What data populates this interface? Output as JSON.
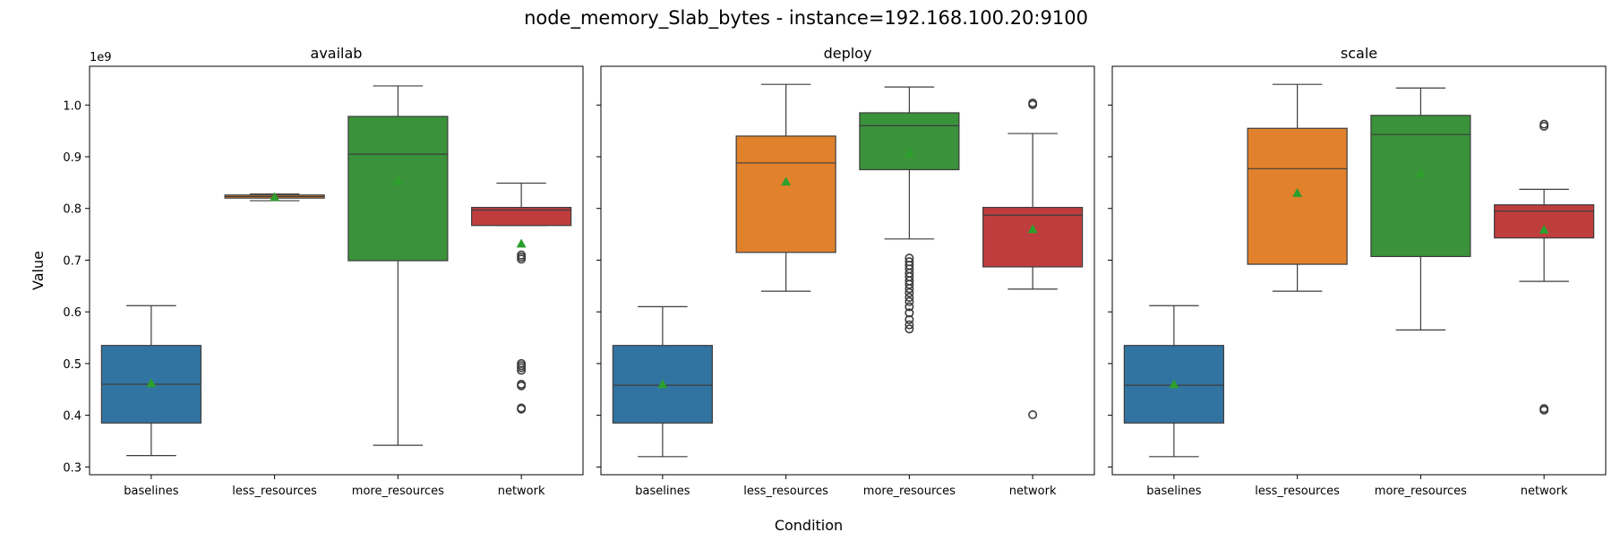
{
  "figure": {
    "title": "node_memory_Slab_bytes - instance=192.168.100.20:9100",
    "xlabel": "Condition",
    "ylabel": "Value",
    "y_offset_text": "1e9"
  },
  "colors": {
    "baselines": "#3274a1",
    "less_resources": "#e1812c",
    "more_resources": "#3a923a",
    "network": "#c03d3e",
    "mean_marker": "#2ca02c",
    "line": "#3d3d3d"
  },
  "chart_data": [
    {
      "type": "box",
      "title": "availab",
      "categories": [
        "baselines",
        "less_resources",
        "more_resources",
        "network"
      ],
      "ylim": [
        0.285,
        1.075
      ],
      "yticks": [
        0.3,
        0.4,
        0.5,
        0.6,
        0.7,
        0.8,
        0.9,
        1.0
      ],
      "boxes": [
        {
          "category": "baselines",
          "whislo": 0.322,
          "q1": 0.385,
          "med": 0.46,
          "q3": 0.535,
          "whishi": 0.612,
          "mean": 0.462,
          "fliers": []
        },
        {
          "category": "less_resources",
          "whislo": 0.815,
          "q1": 0.82,
          "med": 0.823,
          "q3": 0.826,
          "whishi": 0.828,
          "mean": 0.822,
          "fliers": []
        },
        {
          "category": "more_resources",
          "whislo": 0.342,
          "q1": 0.699,
          "med": 0.905,
          "q3": 0.978,
          "whishi": 1.037,
          "mean": 0.853,
          "fliers": []
        },
        {
          "category": "network",
          "whislo": 0.767,
          "q1": 0.767,
          "med": 0.797,
          "q3": 0.802,
          "whishi": 0.849,
          "mean": 0.732,
          "fliers": [
            0.412,
            0.414,
            0.457,
            0.46,
            0.487,
            0.492,
            0.496,
            0.5,
            0.702,
            0.706,
            0.71
          ]
        }
      ]
    },
    {
      "type": "box",
      "title": "deploy",
      "categories": [
        "baselines",
        "less_resources",
        "more_resources",
        "network"
      ],
      "ylim": [
        0.285,
        1.075
      ],
      "yticks": [
        0.3,
        0.4,
        0.5,
        0.6,
        0.7,
        0.8,
        0.9,
        1.0
      ],
      "boxes": [
        {
          "category": "baselines",
          "whislo": 0.32,
          "q1": 0.385,
          "med": 0.458,
          "q3": 0.535,
          "whishi": 0.61,
          "mean": 0.46,
          "fliers": []
        },
        {
          "category": "less_resources",
          "whislo": 0.64,
          "q1": 0.715,
          "med": 0.888,
          "q3": 0.94,
          "whishi": 1.04,
          "mean": 0.852,
          "fliers": []
        },
        {
          "category": "more_resources",
          "whislo": 0.741,
          "q1": 0.875,
          "med": 0.96,
          "q3": 0.985,
          "whishi": 1.035,
          "mean": 0.907,
          "fliers": [
            0.567,
            0.575,
            0.585,
            0.598,
            0.61,
            0.62,
            0.628,
            0.637,
            0.645,
            0.653,
            0.66,
            0.668,
            0.675,
            0.683,
            0.69,
            0.697,
            0.704
          ]
        },
        {
          "category": "network",
          "whislo": 0.644,
          "q1": 0.687,
          "med": 0.787,
          "q3": 0.802,
          "whishi": 0.945,
          "mean": 0.76,
          "fliers": [
            0.401,
            1.001,
            1.004
          ]
        }
      ]
    },
    {
      "type": "box",
      "title": "scale",
      "categories": [
        "baselines",
        "less_resources",
        "more_resources",
        "network"
      ],
      "ylim": [
        0.285,
        1.075
      ],
      "yticks": [
        0.3,
        0.4,
        0.5,
        0.6,
        0.7,
        0.8,
        0.9,
        1.0
      ],
      "boxes": [
        {
          "category": "baselines",
          "whislo": 0.32,
          "q1": 0.385,
          "med": 0.458,
          "q3": 0.535,
          "whishi": 0.612,
          "mean": 0.46,
          "fliers": []
        },
        {
          "category": "less_resources",
          "whislo": 0.64,
          "q1": 0.692,
          "med": 0.877,
          "q3": 0.955,
          "whishi": 1.04,
          "mean": 0.83,
          "fliers": []
        },
        {
          "category": "more_resources",
          "whislo": 0.565,
          "q1": 0.707,
          "med": 0.943,
          "q3": 0.98,
          "whishi": 1.033,
          "mean": 0.868,
          "fliers": []
        },
        {
          "category": "network",
          "whislo": 0.659,
          "q1": 0.743,
          "med": 0.795,
          "q3": 0.807,
          "whishi": 0.837,
          "mean": 0.759,
          "fliers": [
            0.41,
            0.413,
            0.959,
            0.963
          ]
        }
      ]
    }
  ]
}
